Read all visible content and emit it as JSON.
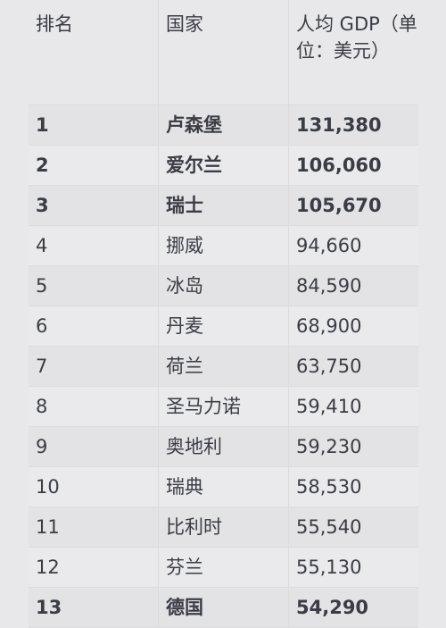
{
  "table": {
    "headers": {
      "rank": "排名",
      "country": "国家",
      "gdp": "人均 GDP（单位：美元）"
    },
    "rows": [
      {
        "rank": "1",
        "country": "卢森堡",
        "gdp": "131,380",
        "bold": true
      },
      {
        "rank": "2",
        "country": "爱尔兰",
        "gdp": "106,060",
        "bold": true
      },
      {
        "rank": "3",
        "country": "瑞士",
        "gdp": "105,670",
        "bold": true
      },
      {
        "rank": "4",
        "country": "挪威",
        "gdp": "94,660",
        "bold": false
      },
      {
        "rank": "5",
        "country": "冰岛",
        "gdp": "84,590",
        "bold": false
      },
      {
        "rank": "6",
        "country": "丹麦",
        "gdp": "68,900",
        "bold": false
      },
      {
        "rank": "7",
        "country": "荷兰",
        "gdp": "63,750",
        "bold": false
      },
      {
        "rank": "8",
        "country": "圣马力诺",
        "gdp": "59,410",
        "bold": false
      },
      {
        "rank": "9",
        "country": "奥地利",
        "gdp": "59,230",
        "bold": false
      },
      {
        "rank": "10",
        "country": "瑞典",
        "gdp": "58,530",
        "bold": false
      },
      {
        "rank": "11",
        "country": "比利时",
        "gdp": "55,540",
        "bold": false
      },
      {
        "rank": "12",
        "country": "芬兰",
        "gdp": "55,130",
        "bold": false
      },
      {
        "rank": "13",
        "country": "德国",
        "gdp": "54,290",
        "bold": true
      }
    ]
  }
}
